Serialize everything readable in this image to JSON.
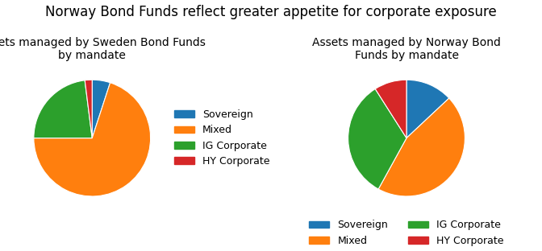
{
  "title": "Norway Bond Funds reflect greater appetite for corporate exposure",
  "chart_data": [
    {
      "type": "pie",
      "title": "Assets managed by Sweden Bond Funds\nby mandate",
      "categories": [
        "Sovereign",
        "Mixed",
        "IG Corporate",
        "HY Corporate"
      ],
      "values": [
        5,
        70,
        23,
        2
      ],
      "legend": "right"
    },
    {
      "type": "pie",
      "title": "Assets managed by Norway Bond\nFunds by mandate",
      "categories": [
        "Sovereign",
        "Mixed",
        "IG Corporate",
        "HY Corporate"
      ],
      "values": [
        13,
        45,
        33,
        9
      ],
      "legend": "bottom"
    }
  ]
}
